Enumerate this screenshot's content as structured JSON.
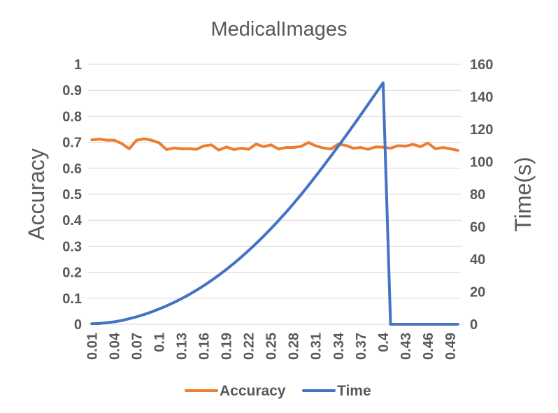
{
  "chart_data": {
    "type": "line",
    "title": "MedicalImages",
    "xlabel": "",
    "ylabel_left": "Accuracy",
    "ylabel_right": "Time(s)",
    "y_left_lim": [
      0,
      1
    ],
    "y_right_lim": [
      0,
      160
    ],
    "y_left_ticks": [
      "0",
      "0.1",
      "0.2",
      "0.3",
      "0.4",
      "0.5",
      "0.6",
      "0.7",
      "0.8",
      "0.9",
      "1"
    ],
    "y_right_ticks": [
      "0",
      "20",
      "40",
      "60",
      "80",
      "100",
      "120",
      "140",
      "160"
    ],
    "x": [
      0.01,
      0.02,
      0.03,
      0.04,
      0.05,
      0.06,
      0.07,
      0.08,
      0.09,
      0.1,
      0.11,
      0.12,
      0.13,
      0.14,
      0.15,
      0.16,
      0.17,
      0.18,
      0.19,
      0.2,
      0.21,
      0.22,
      0.23,
      0.24,
      0.25,
      0.26,
      0.27,
      0.28,
      0.29,
      0.3,
      0.31,
      0.32,
      0.33,
      0.34,
      0.35,
      0.36,
      0.37,
      0.38,
      0.39,
      0.4,
      0.41,
      0.42,
      0.43,
      0.44,
      0.45,
      0.46,
      0.47,
      0.48,
      0.49,
      0.5
    ],
    "x_tick_labels": [
      "0.01",
      "0.04",
      "0.07",
      "0.1",
      "0.13",
      "0.16",
      "0.19",
      "0.22",
      "0.25",
      "0.28",
      "0.31",
      "0.34",
      "0.37",
      "0.4",
      "0.43",
      "0.46",
      "0.49"
    ],
    "x_tick_every": 3,
    "legend_position": "bottom",
    "grid": "horizontal",
    "series": [
      {
        "name": "Accuracy",
        "axis": "left",
        "color": "#ED7D31",
        "values": [
          0.709,
          0.712,
          0.708,
          0.708,
          0.695,
          0.675,
          0.708,
          0.713,
          0.708,
          0.698,
          0.672,
          0.678,
          0.675,
          0.675,
          0.673,
          0.686,
          0.69,
          0.67,
          0.682,
          0.672,
          0.677,
          0.673,
          0.693,
          0.683,
          0.69,
          0.674,
          0.68,
          0.68,
          0.684,
          0.699,
          0.686,
          0.678,
          0.674,
          0.693,
          0.688,
          0.677,
          0.68,
          0.673,
          0.682,
          0.681,
          0.677,
          0.687,
          0.685,
          0.692,
          0.683,
          0.697,
          0.675,
          0.68,
          0.675,
          0.669
        ]
      },
      {
        "name": "Time",
        "axis": "right",
        "color": "#4472C4",
        "values": [
          0.3,
          0.5,
          0.9,
          1.5,
          2.3,
          3.4,
          4.6,
          6.0,
          7.6,
          9.4,
          11.3,
          13.4,
          15.7,
          18.2,
          20.9,
          23.8,
          26.9,
          30.2,
          33.7,
          37.4,
          41.3,
          45.4,
          49.7,
          54.2,
          58.9,
          63.8,
          68.9,
          74.2,
          79.7,
          85.4,
          91.3,
          97.3,
          103.4,
          109.6,
          115.9,
          122.3,
          128.8,
          135.4,
          142.0,
          148.6,
          0,
          0,
          0,
          0,
          0,
          0,
          0,
          0,
          0,
          0
        ]
      }
    ]
  }
}
